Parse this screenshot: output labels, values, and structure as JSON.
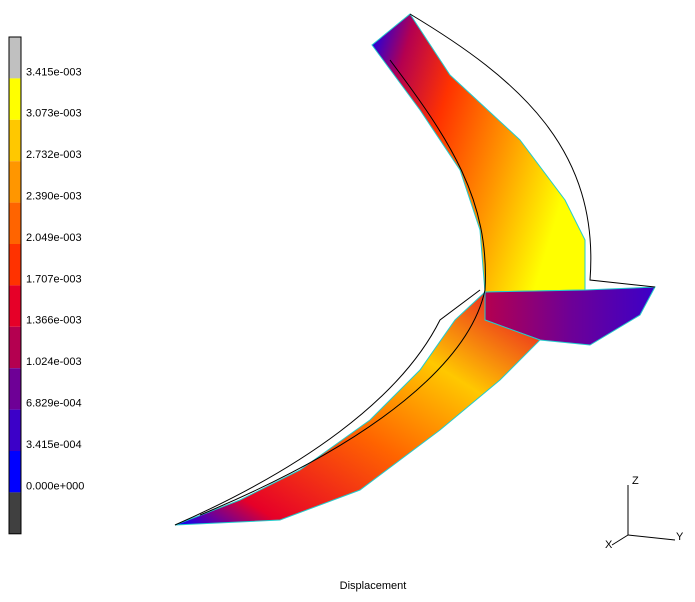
{
  "legend": {
    "labels": [
      "3.415e-003",
      "3.073e-003",
      "2.732e-003",
      "2.390e-003",
      "2.049e-003",
      "1.707e-003",
      "1.366e-003",
      "1.024e-003",
      "6.829e-004",
      "3.415e-004",
      "0.000e+000"
    ]
  },
  "triad": {
    "z": "Z",
    "x": "X",
    "y": "Y"
  },
  "caption": "Displacement"
}
